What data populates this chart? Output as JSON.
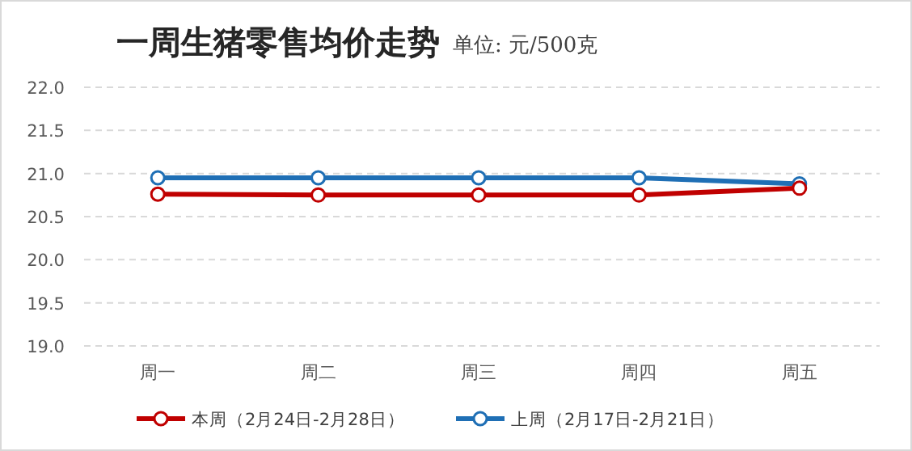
{
  "chart_data": {
    "type": "line",
    "title": "一周生猪零售均价走势",
    "subtitle": "单位: 元/500克",
    "categories": [
      "周一",
      "周二",
      "周三",
      "周四",
      "周五"
    ],
    "series": [
      {
        "name": "本周（2月24日-2月28日）",
        "color": "#c00000",
        "values": [
          20.76,
          20.75,
          20.75,
          20.75,
          20.83
        ]
      },
      {
        "name": "上周（2月17日-2月21日）",
        "color": "#1f6fb5",
        "values": [
          20.95,
          20.95,
          20.95,
          20.95,
          20.88
        ]
      }
    ],
    "ylim": [
      19,
      22
    ],
    "yticks": [
      {
        "value": 19,
        "label": "19.0"
      },
      {
        "value": 19.5,
        "label": "19.5"
      },
      {
        "value": 20,
        "label": "20.0"
      },
      {
        "value": 20.5,
        "label": "20.5"
      },
      {
        "value": 21,
        "label": "21.0"
      },
      {
        "value": 21.5,
        "label": "21.5"
      },
      {
        "value": 22,
        "label": "22.0"
      }
    ],
    "grid": "y",
    "legend": "bottom",
    "marker": "circle",
    "line_style": "solid"
  }
}
